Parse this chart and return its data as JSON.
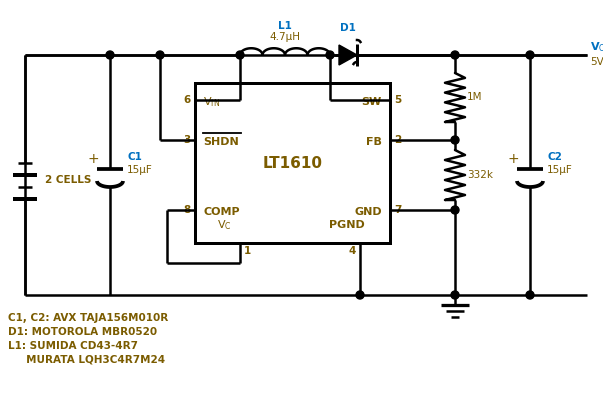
{
  "bg_color": "#ffffff",
  "line_color": "#000000",
  "text_color_dark": "#7b5c00",
  "text_color_blue": "#0070c0",
  "lw": 1.8,
  "notes": [
    "C1, C2: AVX TAJA156M010R",
    "D1: MOTOROLA MBR0520",
    "L1: SUMIDA CD43-4R7",
    "     MURATA LQH3C4R7M24"
  ]
}
